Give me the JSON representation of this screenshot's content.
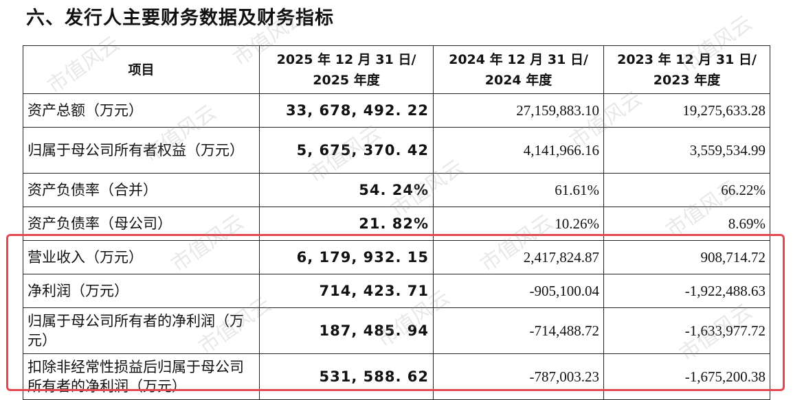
{
  "heading": "六、发行人主要财务数据及财务指标",
  "table": {
    "headers": {
      "item": "项目",
      "col2025_line1": "2025 年 12 月 31 日/",
      "col2025_line2": "2025 年度",
      "col2024_line1": "2024 年 12 月 31 日/",
      "col2024_line2": "2024 年度",
      "col2023_line1": "2023 年 12 月 31 日/",
      "col2023_line2": "2023 年度"
    },
    "rows": [
      {
        "label": "资产总额（万元）",
        "v2025": "33, 678, 492. 22",
        "v2024": "27,159,883.10",
        "v2023": "19,275,633.28"
      },
      {
        "label": "归属于母公司所有者权益（万元）",
        "v2025": "5, 675, 370. 42",
        "v2024": "4,141,966.16",
        "v2023": "3,559,534.99"
      },
      {
        "label": "资产负债率（合并）",
        "v2025": "54. 24%",
        "v2024": "61.61%",
        "v2023": "66.22%"
      },
      {
        "label": "资产负债率（母公司）",
        "v2025": "21. 82%",
        "v2024": "10.26%",
        "v2023": "8.69%"
      },
      {
        "label": "营业收入（万元）",
        "v2025": "6, 179, 932. 15",
        "v2024": "2,417,824.87",
        "v2023": "908,714.72"
      },
      {
        "label": "净利润（万元）",
        "v2025": "714, 423. 71",
        "v2024": "-905,100.04",
        "v2023": "-1,922,488.63"
      },
      {
        "label": "归属于母公司所有者的净利润（万元）",
        "v2025": "187, 485. 94",
        "v2024": "-714,488.72",
        "v2023": "-1,633,977.72"
      },
      {
        "label": "扣除非经常性损益后归属于母公司所有者的净利润（万元）",
        "v2025": "531, 588. 62",
        "v2024": "-787,003.23",
        "v2023": "-1,675,200.38"
      }
    ]
  },
  "watermark_text": "市值风云",
  "colors": {
    "highlight_border": "#e2474f",
    "table_border": "#222222"
  }
}
